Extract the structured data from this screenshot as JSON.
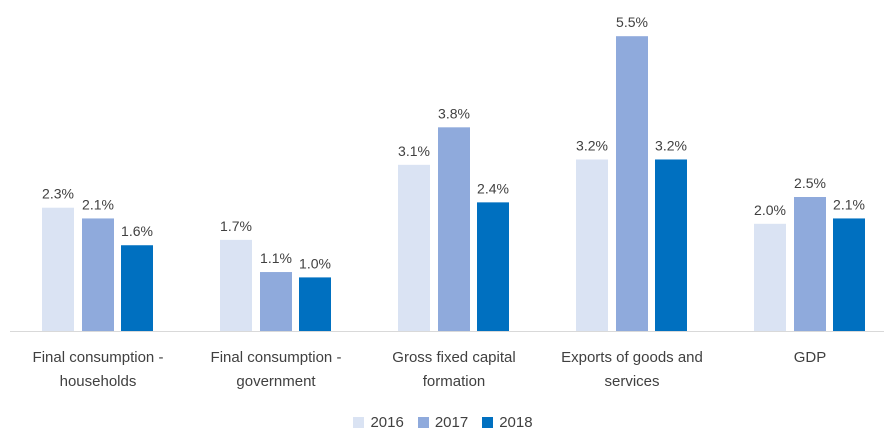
{
  "chart_data": {
    "type": "bar",
    "categories": [
      [
        "Final consumption -",
        "households"
      ],
      [
        "Final consumption -",
        "government"
      ],
      [
        "Gross fixed capital",
        "formation"
      ],
      [
        "Exports of goods and",
        "services"
      ],
      [
        "GDP"
      ]
    ],
    "series": [
      {
        "name": "2016",
        "color": "#dae3f3",
        "values": [
          2.3,
          1.7,
          3.1,
          3.2,
          2.0
        ],
        "labels": [
          "2.3%",
          "1.7%",
          "3.1%",
          "3.2%",
          "2.0%"
        ]
      },
      {
        "name": "2017",
        "color": "#8faadc",
        "values": [
          2.1,
          1.1,
          3.8,
          5.5,
          2.5
        ],
        "labels": [
          "2.1%",
          "1.1%",
          "3.8%",
          "5.5%",
          "2.5%"
        ]
      },
      {
        "name": "2018",
        "color": "#0070c0",
        "values": [
          1.6,
          1.0,
          2.4,
          3.2,
          2.1
        ],
        "labels": [
          "1.6%",
          "1.0%",
          "2.4%",
          "3.2%",
          "2.1%"
        ]
      }
    ],
    "ylim": [
      0,
      5.5
    ],
    "grid": false,
    "legend_position": "bottom",
    "title": "",
    "xlabel": "",
    "ylabel": ""
  }
}
